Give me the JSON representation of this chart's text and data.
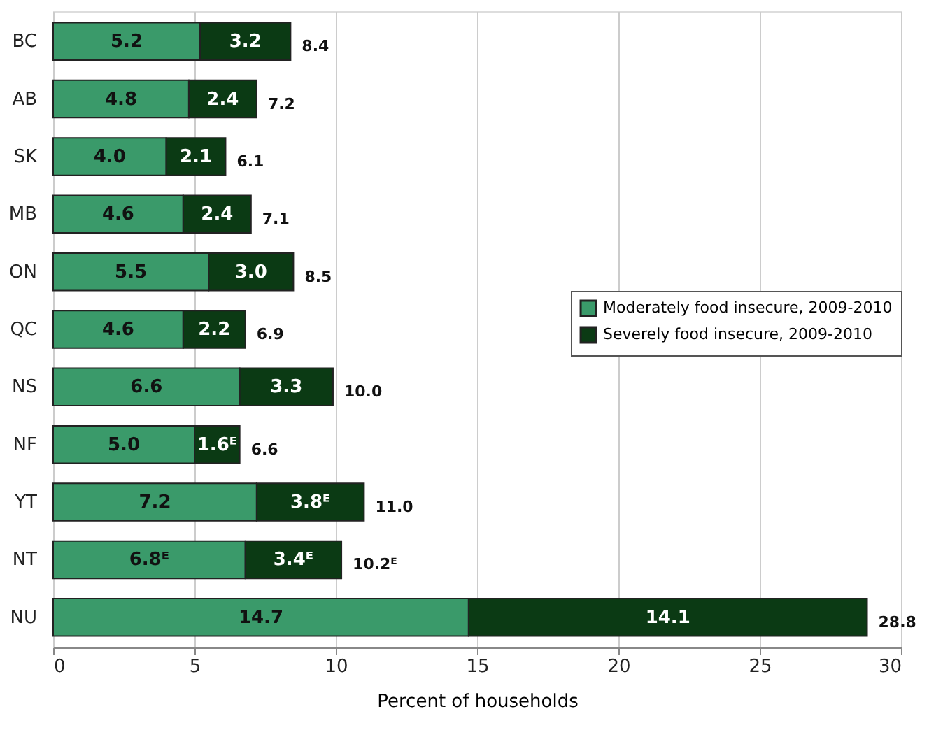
{
  "chart_data": {
    "type": "bar",
    "orientation": "horizontal",
    "stacked": true,
    "xlabel": "Percent of households",
    "categories": [
      "BC",
      "AB",
      "SK",
      "MB",
      "ON",
      "QC",
      "NS",
      "NF",
      "YT",
      "NT",
      "NU"
    ],
    "series": [
      {
        "name": "Moderately food insecure, 2009-2010",
        "color": "#3a9a6a",
        "values": [
          5.2,
          4.8,
          4.0,
          4.6,
          5.5,
          4.6,
          6.6,
          5.0,
          7.2,
          6.8,
          14.7
        ],
        "value_labels": [
          "5.2",
          "4.8",
          "4.0",
          "4.6",
          "5.5",
          "4.6",
          "6.6",
          "5.0",
          "7.2",
          "6.8ᴱ",
          "14.7"
        ]
      },
      {
        "name": "Severely food insecure, 2009-2010",
        "color": "#0b3a14",
        "values": [
          3.2,
          2.4,
          2.1,
          2.4,
          3.0,
          2.2,
          3.3,
          1.6,
          3.8,
          3.4,
          14.1
        ],
        "value_labels": [
          "3.2",
          "2.4",
          "2.1",
          "2.4",
          "3.0",
          "2.2",
          "3.3",
          "1.6ᴱ",
          "3.8ᴱ",
          "3.4ᴱ",
          "14.1"
        ]
      }
    ],
    "totals": [
      "8.4",
      "7.2",
      "6.1",
      "7.1",
      "8.5",
      "6.9",
      "10.0",
      "6.6",
      "11.0",
      "10.2ᴱ",
      "28.8"
    ],
    "xlim": [
      0,
      30
    ],
    "xticks": [
      0,
      5,
      10,
      15,
      20,
      25,
      30
    ],
    "grid": "x",
    "legend": "right"
  }
}
